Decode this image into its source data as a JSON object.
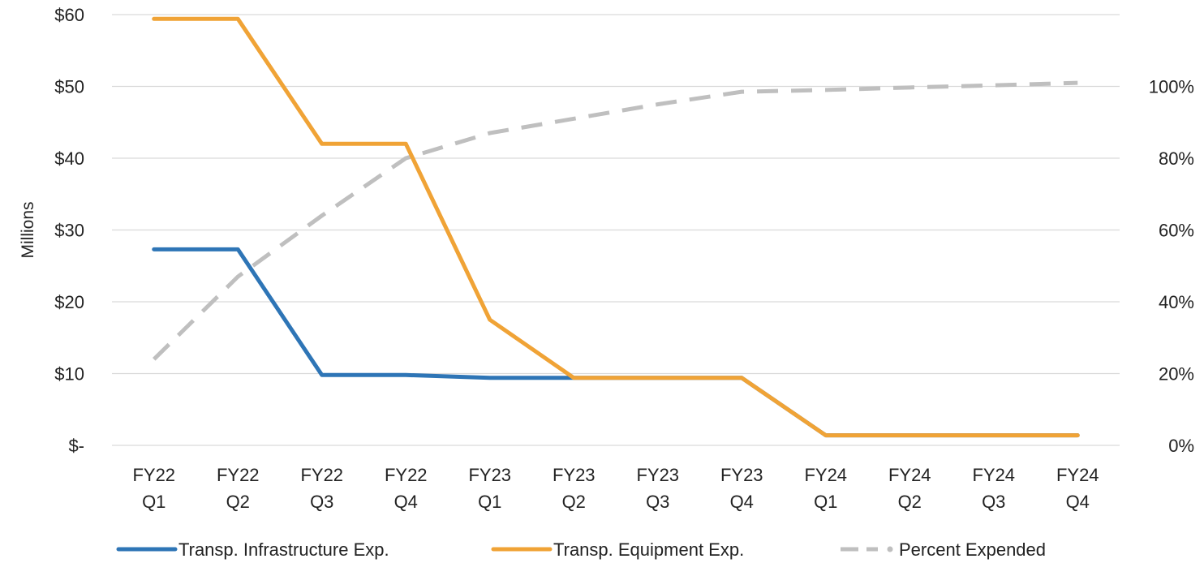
{
  "chart_data": {
    "type": "line",
    "ylabel": "Millions",
    "categories": [
      [
        "FY22",
        "Q1"
      ],
      [
        "FY22",
        "Q2"
      ],
      [
        "FY22",
        "Q3"
      ],
      [
        "FY22",
        "Q4"
      ],
      [
        "FY23",
        "Q1"
      ],
      [
        "FY23",
        "Q2"
      ],
      [
        "FY23",
        "Q3"
      ],
      [
        "FY23",
        "Q4"
      ],
      [
        "FY24",
        "Q1"
      ],
      [
        "FY24",
        "Q2"
      ],
      [
        "FY24",
        "Q3"
      ],
      [
        "FY24",
        "Q4"
      ]
    ],
    "y_left": {
      "min": 0,
      "max": 60,
      "ticks": [
        0,
        10,
        20,
        30,
        40,
        50,
        60
      ],
      "tick_labels": [
        "$-",
        "$10",
        "$20",
        "$30",
        "$40",
        "$50",
        "$60"
      ]
    },
    "y_right": {
      "min": 0,
      "max": 120,
      "ticks": [
        0,
        20,
        40,
        60,
        80,
        100
      ],
      "tick_labels": [
        "0%",
        "20%",
        "40%",
        "60%",
        "80%",
        "100%"
      ]
    },
    "grid": true,
    "legend_position": "bottom",
    "series": [
      {
        "name": "Transp. Infrastructure Exp.",
        "axis": "left",
        "color": "#2e75b6",
        "style": "solid",
        "values": [
          27.3,
          27.3,
          9.8,
          9.8,
          9.4,
          9.4,
          9.4,
          9.4,
          1.4,
          1.4,
          1.4,
          1.4
        ]
      },
      {
        "name": "Transp. Equipment Exp.",
        "axis": "left",
        "color": "#f0a336",
        "style": "solid",
        "values": [
          59.4,
          59.4,
          42.0,
          42.0,
          17.5,
          9.4,
          9.4,
          9.4,
          1.4,
          1.4,
          1.4,
          1.4
        ]
      },
      {
        "name": "Percent Expended",
        "axis": "right",
        "color": "#bfbfbf",
        "style": "dashed",
        "values": [
          24,
          47,
          64,
          80,
          87,
          91,
          95,
          98.5,
          99,
          99.7,
          100.3,
          101
        ]
      }
    ]
  }
}
